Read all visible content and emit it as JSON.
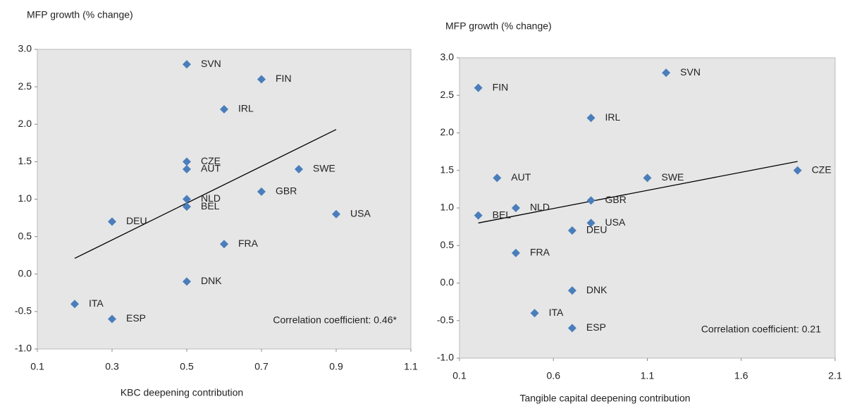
{
  "chart_data": [
    {
      "type": "scatter",
      "y_label": "MFP growth (% change)",
      "x_label": "KBC deepening contribution",
      "annotation": "Correlation coefficient: 0.46*",
      "xlim": [
        0.1,
        1.1
      ],
      "xticks": [
        0.1,
        0.3,
        0.5,
        0.7,
        0.9,
        1.1
      ],
      "ylim": [
        -1,
        3
      ],
      "yticks": [
        {
          "value": -1,
          "label": "-1.0"
        },
        -0.5,
        {
          "value": 0,
          "label": "0.0"
        },
        0.5,
        {
          "value": 1,
          "label": "1.0"
        },
        1.5,
        {
          "value": 2,
          "label": "2.0"
        },
        2.5,
        {
          "value": 3,
          "label": "3.0"
        }
      ],
      "color": "#4a7ebb",
      "grid": false,
      "labels": [
        "SVN",
        "FIN",
        "IRL",
        "CZE",
        "AUT",
        "SWE",
        "GBR",
        "NLD",
        "BEL",
        "USA",
        "DEU",
        "FRA",
        "DNK",
        "ITA",
        "ESP"
      ],
      "x": [
        0.5,
        0.7,
        0.6,
        0.5,
        0.5,
        0.8,
        0.7,
        0.5,
        0.5,
        0.9,
        0.3,
        0.6,
        0.5,
        0.2,
        0.3
      ],
      "y": [
        2.8,
        2.6,
        2.2,
        1.5,
        1.4,
        1.4,
        1.1,
        1.0,
        0.9,
        0.8,
        0.7,
        0.4,
        -0.1,
        -0.4,
        -0.6
      ],
      "trendline": {
        "x": [
          0.2,
          0.9
        ],
        "y": [
          0.21,
          1.93
        ],
        "color": "#000000"
      }
    },
    {
      "type": "scatter",
      "y_label": "MFP growth (% change)",
      "x_label": "Tangible capital deepening contribution",
      "annotation": "Correlation coefficient: 0.21",
      "xlim": [
        0.1,
        2.1
      ],
      "xticks": [
        0.1,
        0.6,
        1.1,
        1.6,
        2.1
      ],
      "ylim": [
        -1,
        3
      ],
      "yticks": [
        {
          "value": -1,
          "label": "-1.0"
        },
        -0.5,
        {
          "value": 0,
          "label": "0.0"
        },
        0.5,
        {
          "value": 1,
          "label": "1.0"
        },
        1.5,
        {
          "value": 2,
          "label": "2.0"
        },
        2.5,
        {
          "value": 3,
          "label": "3.0"
        }
      ],
      "color": "#4a7ebb",
      "grid": false,
      "labels": [
        "SVN",
        "FIN",
        "IRL",
        "CZE",
        "AUT",
        "SWE",
        "GBR",
        "NLD",
        "BEL",
        "USA",
        "DEU",
        "FRA",
        "DNK",
        "ITA",
        "ESP"
      ],
      "x": [
        1.2,
        0.2,
        0.8,
        1.9,
        0.3,
        1.1,
        0.8,
        0.4,
        0.2,
        0.8,
        0.7,
        0.4,
        0.7,
        0.5,
        0.7
      ],
      "y": [
        2.8,
        2.6,
        2.2,
        1.5,
        1.4,
        1.4,
        1.1,
        1.0,
        0.9,
        0.8,
        0.7,
        0.4,
        -0.1,
        -0.4,
        -0.6
      ],
      "trendline": {
        "x": [
          0.2,
          1.9
        ],
        "y": [
          0.8,
          1.62
        ],
        "color": "#000000"
      }
    }
  ]
}
